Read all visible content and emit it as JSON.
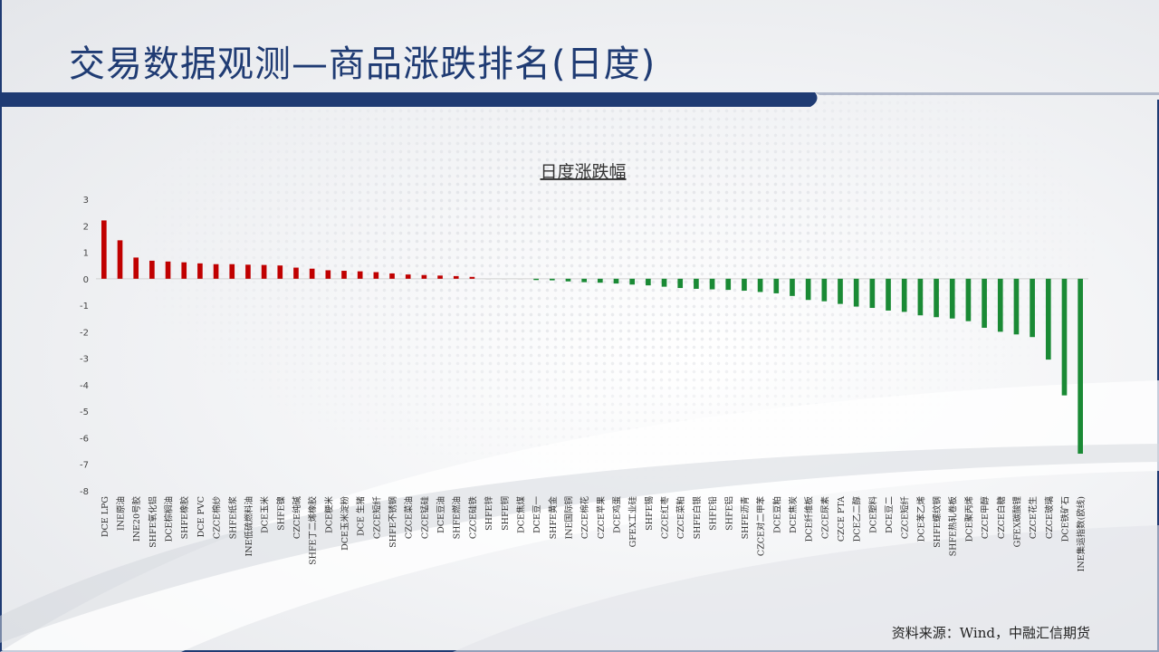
{
  "title": "交易数据观测—商品涨跌排名(日度)",
  "source": "资料来源：Wind，中融汇信期货",
  "colors": {
    "up": "#c00000",
    "down": "#1a8a35",
    "flat": "#d9d9d9",
    "title": "#1f3b73"
  },
  "chart_data": {
    "type": "bar",
    "title": "日度涨跌幅",
    "ylim": [
      -8,
      3
    ],
    "yticks": [
      3,
      2,
      1,
      0,
      -1,
      -2,
      -3,
      -4,
      -5,
      -6,
      -7,
      -8
    ],
    "grid": false,
    "legend": "none",
    "categories": [
      "DCE LPG",
      "INE原油",
      "INE20号胶",
      "SHFE氧化铝",
      "DCE棕榈油",
      "SHFE橡胶",
      "DCE PVC",
      "CZCE棉纱",
      "SHFE纸浆",
      "INE低硫燃料油",
      "DCE玉米",
      "SHFE镍",
      "CZCE纯碱",
      "SHFE丁二烯橡胶",
      "DCE粳米",
      "DCE玉米淀粉",
      "DCE 生猪",
      "CZCE短纤",
      "SHFE不锈钢",
      "CZCE菜油",
      "CZCE锰硅",
      "DCE豆油",
      "SHFE燃油",
      "CZCE硅铁",
      "SHFE锌",
      "SHFE铜",
      "DCE焦煤",
      "DCE豆一",
      "SHFE黄金",
      "INE国际铜",
      "CZCE棉花",
      "CZCE苹果",
      "DCE鸡蛋",
      "GFEX工业硅",
      "SHFE锡",
      "CZCE红枣",
      "CZCE菜粕",
      "SHFE白银",
      "SHFE铅",
      "SHFE铝",
      "SHFE沥青",
      "CZCE对二甲苯",
      "DCE豆粕",
      "DCE焦炭",
      "DCE纤维板",
      "CZCE尿素",
      "CZCE PTA",
      "DCE乙二醇",
      "DCE塑料",
      "DCE豆二",
      "CZCE短纤",
      "DCE苯乙烯",
      "SHFE螺纹钢",
      "SHFE热轧卷板",
      "DCE聚丙烯",
      "CZCE甲醇",
      "CZCE白糖",
      "GFEX碳酸锂",
      "CZCE花生",
      "CZCE玻璃",
      "DCE铁矿石",
      "INE集运指数(欧线)"
    ],
    "values": [
      2.2,
      1.45,
      0.8,
      0.68,
      0.65,
      0.62,
      0.58,
      0.55,
      0.55,
      0.53,
      0.52,
      0.5,
      0.42,
      0.38,
      0.32,
      0.3,
      0.28,
      0.25,
      0.2,
      0.16,
      0.14,
      0.12,
      0.1,
      0.07,
      -0.02,
      -0.02,
      -0.03,
      -0.05,
      -0.06,
      -0.1,
      -0.13,
      -0.15,
      -0.18,
      -0.22,
      -0.25,
      -0.3,
      -0.35,
      -0.38,
      -0.4,
      -0.42,
      -0.45,
      -0.5,
      -0.55,
      -0.65,
      -0.8,
      -0.85,
      -0.95,
      -1.05,
      -1.1,
      -1.2,
      -1.25,
      -1.38,
      -1.45,
      -1.5,
      -1.6,
      -1.85,
      -2.0,
      -2.1,
      -2.2,
      -3.05,
      -4.4,
      -6.6
    ]
  }
}
